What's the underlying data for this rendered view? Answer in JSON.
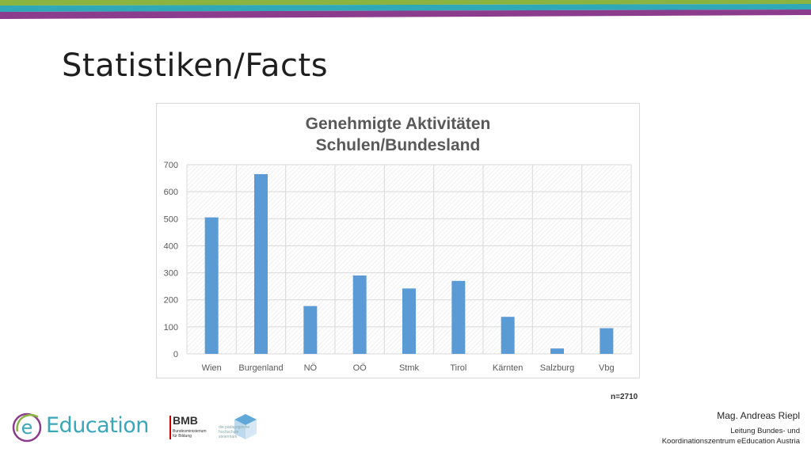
{
  "slide": {
    "title": "Statistiken/Facts",
    "note": "n=2710",
    "author_name": "Mag. Andreas Riepl",
    "author_role_line1": "Leitung Bundes- und",
    "author_role_line2": "Koordinationszentrum eEducation Austria"
  },
  "logos": {
    "eeducation_letter": "e",
    "eeducation_text": "Education",
    "bmb_main": "BMB",
    "bmb_sub1": "Bundesministerium",
    "bmb_sub2": "für Bildung",
    "phs_line1": "die pädagogische",
    "phs_line2": "hochschule",
    "phs_line3": "steiermark"
  },
  "colors": {
    "stripe_green": "#8ab33f",
    "stripe_teal": "#2fa8b7",
    "stripe_purple": "#8c3c8c",
    "bar": "#5b9bd5",
    "title_gray": "#595959",
    "axis_text": "#595959",
    "eeducation": "#3aa6b9"
  },
  "chart_data": {
    "type": "bar",
    "title_line1": "Genehmigte Aktivitäten",
    "title_line2": "Schulen/Bundesland",
    "xlabel": "",
    "ylabel": "",
    "categories": [
      "Wien",
      "Burgenland",
      "NÖ",
      "OÖ",
      "Stmk",
      "Tirol",
      "Kärnten",
      "Salzburg",
      "Vbg"
    ],
    "values": [
      505,
      665,
      177,
      290,
      242,
      270,
      137,
      20,
      95
    ],
    "ylim": [
      0,
      700
    ],
    "yticks": [
      "0",
      "100",
      "200",
      "300",
      "400",
      "500",
      "600",
      "700"
    ],
    "grid": true,
    "legend": "none"
  }
}
